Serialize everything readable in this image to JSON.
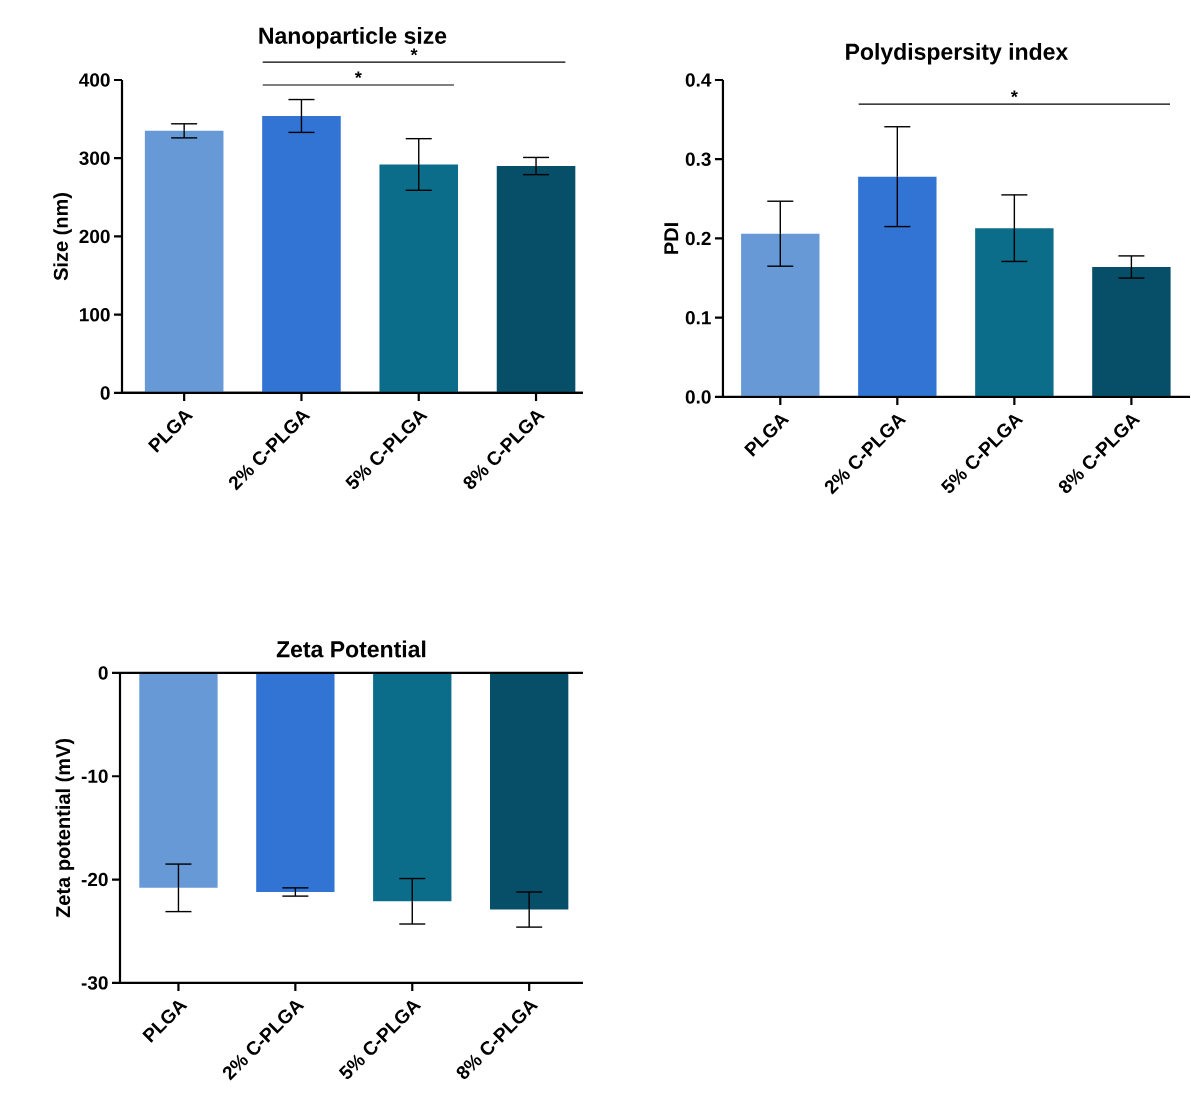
{
  "chart_data": [
    {
      "type": "bar",
      "title": "Nanoparticle size",
      "ylabel": "Size (nm)",
      "categories": [
        "PLGA",
        "2% C-PLGA",
        "5% C-PLGA",
        "8% C-PLGA"
      ],
      "values": [
        335,
        354,
        292,
        290
      ],
      "errors": [
        9,
        21,
        33,
        11
      ],
      "colors": [
        "#6699d5",
        "#3174d4",
        "#0c6d8a",
        "#074f69"
      ],
      "ylim": [
        0,
        400
      ],
      "yticks": [
        0,
        100,
        200,
        300,
        400
      ],
      "annotations": [
        "*",
        "*"
      ]
    },
    {
      "type": "bar",
      "title": "Polydispersity index",
      "ylabel": "PDI",
      "categories": [
        "PLGA",
        "2% C-PLGA",
        "5% C-PLGA",
        "8% C-PLGA"
      ],
      "values": [
        0.206,
        0.278,
        0.213,
        0.164
      ],
      "errors": [
        0.041,
        0.063,
        0.042,
        0.014
      ],
      "colors": [
        "#6699d5",
        "#3174d4",
        "#0c6d8a",
        "#074f69"
      ],
      "ylim": [
        0,
        0.4
      ],
      "yticks": [
        {
          "value": 0,
          "label": "0.0"
        },
        {
          "value": 0.1,
          "label": "0.1"
        },
        {
          "value": 0.2,
          "label": "0.2"
        },
        {
          "value": 0.3,
          "label": "0.3"
        },
        {
          "value": 0.4,
          "label": "0.4"
        }
      ],
      "annotations": [
        "*"
      ]
    },
    {
      "type": "bar",
      "title": "Zeta Potential",
      "ylabel": "Zeta potential (mV)",
      "categories": [
        "PLGA",
        "2% C-PLGA",
        "5% C-PLGA",
        "8% C-PLGA"
      ],
      "values": [
        -20.8,
        -21.2,
        -22.1,
        -22.9
      ],
      "errors": [
        2.3,
        0.4,
        2.2,
        1.7
      ],
      "colors": [
        "#6699d5",
        "#3174d4",
        "#0c6d8a",
        "#074f69"
      ],
      "ylim": [
        -30,
        0
      ],
      "yticks": [
        -30,
        -20,
        -10,
        0
      ]
    }
  ]
}
